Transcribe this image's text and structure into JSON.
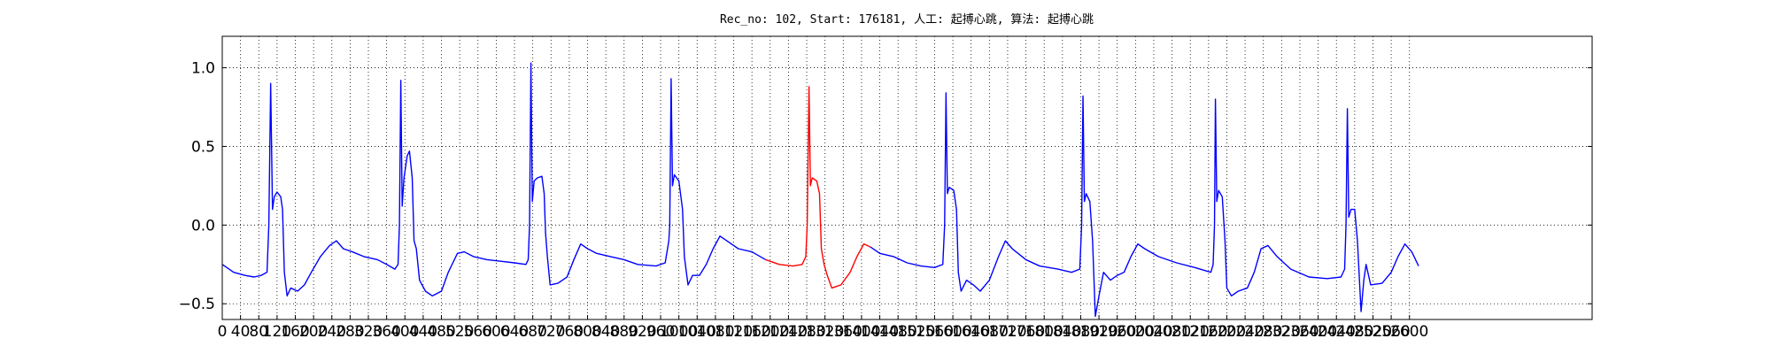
{
  "chart_data": {
    "type": "line",
    "title": "Rec_no: 102, Start: 176181, 人工: 起搏心跳, 算法: 起搏心跳",
    "xlim": [
      0,
      3000
    ],
    "ylim": [
      -0.6,
      1.2
    ],
    "xticks": [
      0,
      40,
      80,
      120,
      160,
      200,
      240,
      280,
      320,
      360,
      400,
      440,
      480,
      520,
      560,
      600,
      640,
      680,
      720,
      760,
      800,
      840,
      880,
      920,
      960,
      1000,
      1040,
      1080,
      1120,
      1160,
      1200,
      1240,
      1280,
      1320,
      1360,
      1400,
      1440,
      1480,
      1520,
      1560,
      1600,
      1640,
      1680,
      1720,
      1760,
      1800,
      1840,
      1880,
      1920,
      1960,
      2000,
      2040,
      2080,
      2120,
      2160,
      2200,
      2240,
      2280,
      2320,
      2360,
      2400,
      2440,
      2480,
      2520,
      2560,
      2600
    ],
    "yticks": [
      {
        "value": -0.5,
        "label": "−0.5"
      },
      {
        "value": 0,
        "label": "0.0"
      },
      0.5,
      {
        "value": 1,
        "label": "1.0"
      }
    ],
    "grid": true,
    "series": [
      {
        "color": "#0000ff",
        "x": [
          0,
          10,
          25,
          50,
          70,
          85,
          98,
          102,
          106,
          110,
          114,
          120,
          128,
          132,
          136,
          142,
          150,
          165,
          180,
          195,
          215,
          235,
          250,
          265,
          285,
          310,
          340,
          360,
          378,
          385,
          388,
          391,
          394,
          398,
          405,
          410,
          416,
          420,
          425,
          432,
          445,
          460,
          480,
          495,
          515,
          530,
          550,
          580,
          610,
          640,
          665,
          670,
          673,
          676,
          679,
          683,
          690,
          700,
          705,
          708,
          712,
          718,
          735,
          755,
          770,
          785,
          800,
          820,
          850,
          880,
          910,
          950,
          970,
          978,
          980,
          983,
          986,
          990,
          1000,
          1008,
          1012,
          1020,
          1030,
          1045,
          1060,
          1075,
          1090,
          1105,
          1130,
          1160,
          1190
        ],
        "values": [
          -0.25,
          -0.27,
          -0.3,
          -0.32,
          -0.33,
          -0.32,
          -0.3,
          0.0,
          0.9,
          0.1,
          0.18,
          0.21,
          0.18,
          0.1,
          -0.3,
          -0.45,
          -0.4,
          -0.42,
          -0.38,
          -0.3,
          -0.2,
          -0.13,
          -0.1,
          -0.15,
          -0.17,
          -0.2,
          -0.22,
          -0.25,
          -0.28,
          -0.25,
          0.0,
          0.92,
          0.12,
          0.3,
          0.44,
          0.47,
          0.3,
          -0.1,
          -0.15,
          -0.35,
          -0.42,
          -0.45,
          -0.42,
          -0.3,
          -0.18,
          -0.17,
          -0.2,
          -0.22,
          -0.23,
          -0.24,
          -0.25,
          -0.22,
          0.0,
          1.03,
          0.15,
          0.28,
          0.3,
          0.31,
          0.2,
          -0.05,
          -0.2,
          -0.38,
          -0.37,
          -0.33,
          -0.22,
          -0.12,
          -0.15,
          -0.18,
          -0.2,
          -0.22,
          -0.25,
          -0.26,
          -0.24,
          -0.1,
          0.0,
          0.93,
          0.25,
          0.32,
          0.28,
          0.1,
          -0.2,
          -0.38,
          -0.32,
          -0.32,
          -0.25,
          -0.15,
          -0.07,
          -0.1,
          -0.15,
          -0.17,
          -0.22
        ]
      },
      {
        "color": "#ff0000",
        "x": [
          1190,
          1220,
          1250,
          1270,
          1278,
          1281,
          1285,
          1288,
          1292,
          1302,
          1308,
          1312,
          1318,
          1325,
          1335,
          1355,
          1375,
          1390,
          1405,
          1420
        ],
        "values": [
          -0.22,
          -0.25,
          -0.26,
          -0.25,
          -0.2,
          0.0,
          0.88,
          0.25,
          0.3,
          0.28,
          0.2,
          -0.15,
          -0.25,
          -0.32,
          -0.4,
          -0.38,
          -0.3,
          -0.2,
          -0.12,
          -0.14
        ]
      },
      {
        "color": "#0000ff",
        "x": [
          1420,
          1440,
          1470,
          1500,
          1530,
          1560,
          1578,
          1582,
          1585,
          1588,
          1592,
          1602,
          1608,
          1612,
          1618,
          1630,
          1645,
          1660,
          1680,
          1700,
          1715,
          1730,
          1760,
          1790,
          1830,
          1860,
          1878,
          1882,
          1885,
          1888,
          1892,
          1900,
          1906,
          1912,
          1920,
          1930,
          1945,
          1960,
          1975,
          1990,
          2005,
          2020,
          2050,
          2090,
          2130,
          2165,
          2170,
          2173,
          2175,
          2178,
          2182,
          2190,
          2196,
          2200,
          2210,
          2225,
          2245,
          2260,
          2275,
          2290,
          2310,
          2340,
          2380,
          2420,
          2450,
          2458,
          2461,
          2464,
          2467,
          2472,
          2480,
          2486,
          2494,
          2500,
          2505,
          2515,
          2540,
          2560,
          2575,
          2590,
          2605,
          2620
        ],
        "values": [
          -0.14,
          -0.18,
          -0.2,
          -0.24,
          -0.26,
          -0.27,
          -0.25,
          0.0,
          0.84,
          0.2,
          0.24,
          0.22,
          0.1,
          -0.3,
          -0.42,
          -0.35,
          -0.38,
          -0.42,
          -0.35,
          -0.2,
          -0.1,
          -0.15,
          -0.22,
          -0.26,
          -0.28,
          -0.3,
          -0.28,
          0.0,
          0.82,
          0.15,
          0.2,
          0.15,
          -0.1,
          -0.58,
          -0.45,
          -0.3,
          -0.35,
          -0.32,
          -0.3,
          -0.2,
          -0.12,
          -0.15,
          -0.2,
          -0.24,
          -0.27,
          -0.3,
          -0.25,
          0.0,
          0.8,
          0.15,
          0.22,
          0.18,
          -0.1,
          -0.4,
          -0.45,
          -0.42,
          -0.4,
          -0.3,
          -0.15,
          -0.13,
          -0.2,
          -0.28,
          -0.33,
          -0.34,
          -0.33,
          -0.28,
          0.0,
          0.74,
          0.05,
          0.1,
          0.1,
          -0.1,
          -0.55,
          -0.35,
          -0.25,
          -0.38,
          -0.37,
          -0.3,
          -0.2,
          -0.12,
          -0.17,
          -0.26
        ]
      }
    ]
  }
}
